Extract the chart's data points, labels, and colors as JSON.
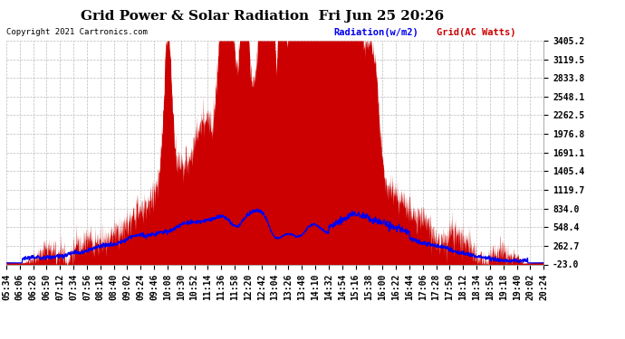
{
  "title": "Grid Power & Solar Radiation  Fri Jun 25 20:26",
  "copyright": "Copyright 2021 Cartronics.com",
  "legend_radiation": "Radiation(w/m2)",
  "legend_grid": "Grid(AC Watts)",
  "ymin": -23.0,
  "ymax": 3405.2,
  "yticks": [
    3405.2,
    3119.5,
    2833.8,
    2548.1,
    2262.5,
    1976.8,
    1691.1,
    1405.4,
    1119.7,
    834.0,
    548.4,
    262.7,
    -23.0
  ],
  "background_color": "#ffffff",
  "grid_color": "#bbbbbb",
  "fill_color": "#cc0000",
  "radiation_color": "#0000ee",
  "title_fontsize": 11,
  "tick_fontsize": 7,
  "xtick_labels": [
    "05:34",
    "06:06",
    "06:28",
    "06:50",
    "07:12",
    "07:34",
    "07:56",
    "08:18",
    "08:40",
    "09:02",
    "09:24",
    "09:46",
    "10:08",
    "10:30",
    "10:52",
    "11:14",
    "11:36",
    "11:58",
    "12:20",
    "12:42",
    "13:04",
    "13:26",
    "13:48",
    "14:10",
    "14:32",
    "14:54",
    "15:16",
    "15:38",
    "16:00",
    "16:22",
    "16:44",
    "17:06",
    "17:28",
    "17:50",
    "18:12",
    "18:34",
    "18:56",
    "19:18",
    "19:40",
    "20:02",
    "20:24"
  ]
}
